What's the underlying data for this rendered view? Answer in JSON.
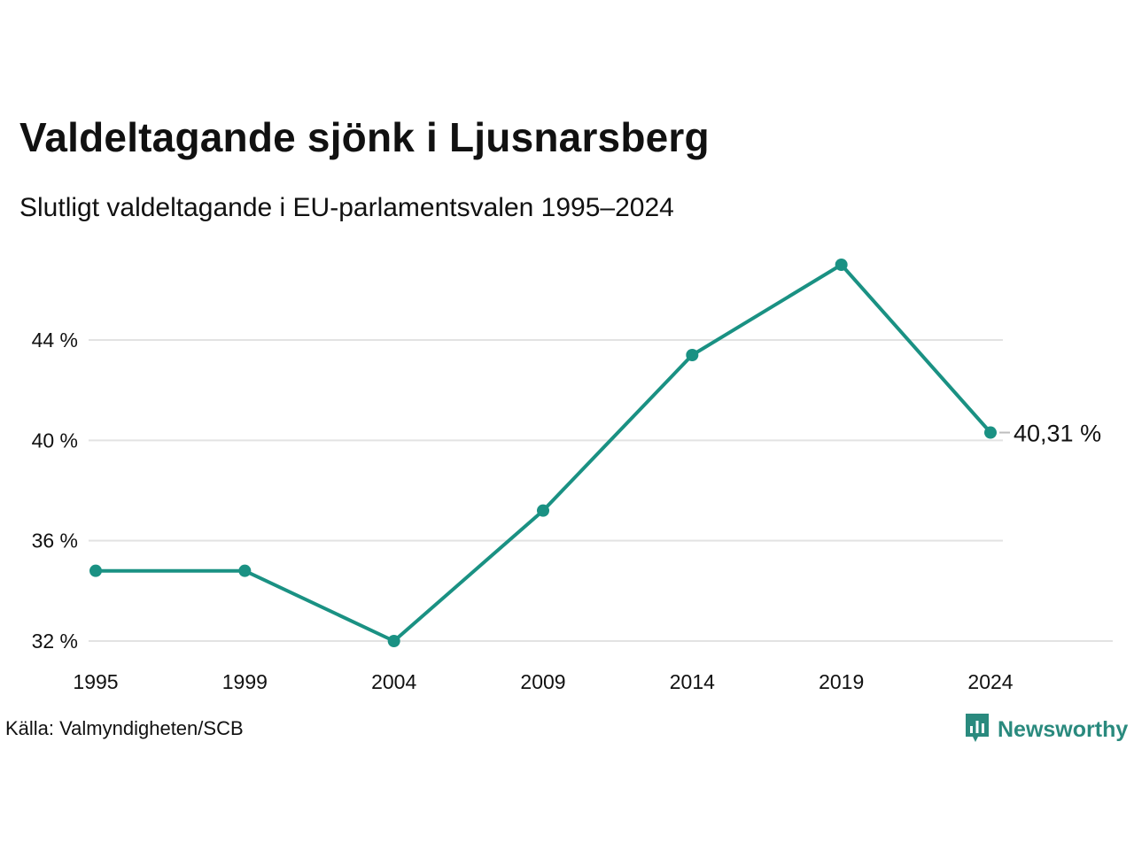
{
  "title": "Valdeltagande sjönk i Ljusnarsberg",
  "subtitle": "Slutligt valdeltagande i EU-parlamentsvalen 1995–2024",
  "source": "Källa: Valmyndigheten/SCB",
  "brand": {
    "name": "Newsworthy",
    "icon": "bar-chart-speech-bubble-icon",
    "color": "#2a8a7e"
  },
  "colors": {
    "line": "#1a9183",
    "grid": "#e3e3e3"
  },
  "chart_data": {
    "type": "line",
    "x": [
      "1995",
      "1999",
      "2004",
      "2009",
      "2014",
      "2019",
      "2024"
    ],
    "values": [
      34.8,
      34.8,
      32.0,
      37.2,
      43.4,
      47.0,
      40.31
    ],
    "y_ticks": [
      {
        "value": 32,
        "label": "32 %"
      },
      {
        "value": 36,
        "label": "36 %"
      },
      {
        "value": 40,
        "label": "40 %"
      },
      {
        "value": 44,
        "label": "44 %"
      }
    ],
    "end_label": "40,31 %",
    "ylim": [
      32,
      47
    ],
    "grid": true,
    "legend": "none",
    "xlabel": "",
    "ylabel": ""
  }
}
